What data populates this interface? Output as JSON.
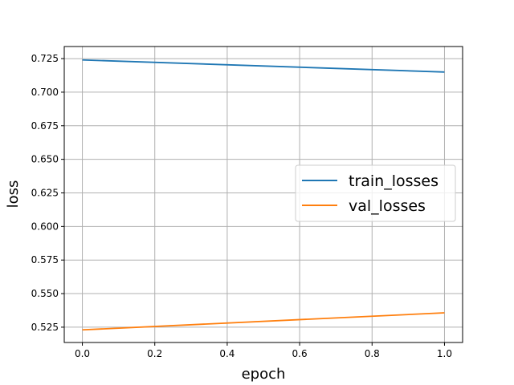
{
  "chart_data": {
    "type": "line",
    "xlabel": "epoch",
    "ylabel": "loss",
    "xlim": [
      -0.05,
      1.05
    ],
    "ylim": [
      0.5136,
      0.734
    ],
    "x_ticks": [
      "0.0",
      "0.2",
      "0.4",
      "0.6",
      "0.8",
      "1.0"
    ],
    "y_ticks": [
      "0.525",
      "0.550",
      "0.575",
      "0.600",
      "0.625",
      "0.650",
      "0.675",
      "0.700",
      "0.725"
    ],
    "grid": true,
    "legend_position": "center-right",
    "series": [
      {
        "name": "train_losses",
        "color": "#1f77b4",
        "x": [
          0,
          1
        ],
        "y": [
          0.724,
          0.715
        ]
      },
      {
        "name": "val_losses",
        "color": "#ff7f0e",
        "x": [
          0,
          1
        ],
        "y": [
          0.523,
          0.5357
        ]
      }
    ]
  }
}
